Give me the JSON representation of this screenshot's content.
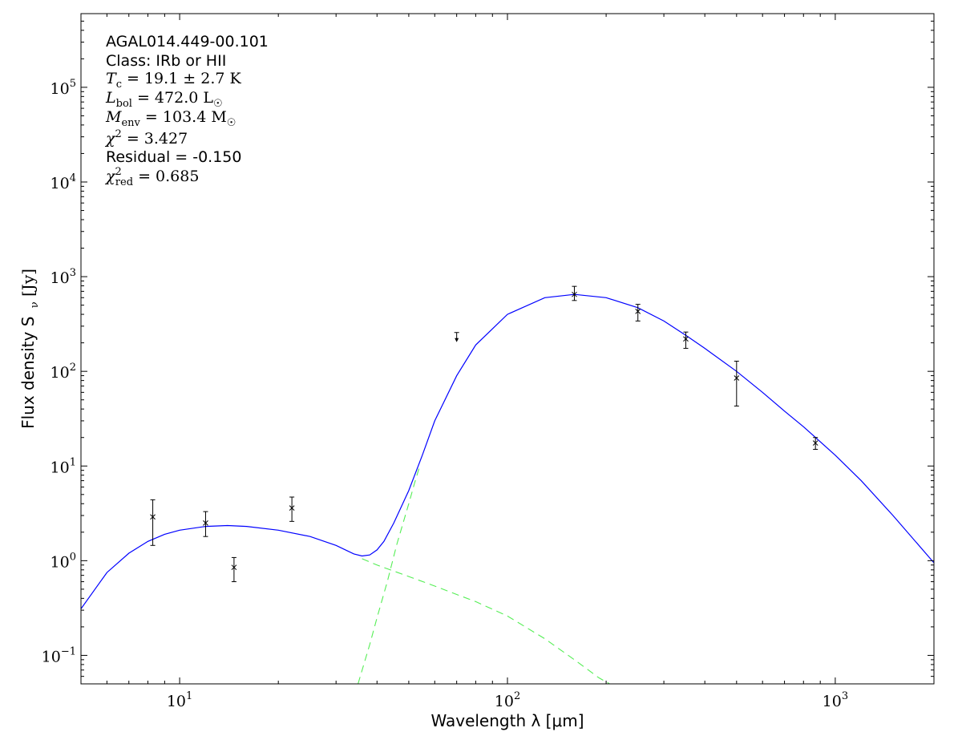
{
  "chart_data": {
    "type": "scatter",
    "source_name": "AGAL014.449-00.101",
    "classification": "Class: IRb or HII",
    "fit_results": {
      "tc": {
        "symbol": "T",
        "sub": "c",
        "rest": " = 19.1 ± 2.7 K"
      },
      "lbol": {
        "symbol": "L",
        "sub": "bol",
        "rest": " = 472.0 L",
        "unit_sub": "☉"
      },
      "menv": {
        "symbol": "M",
        "sub": "env",
        "rest": " = 103.4 M",
        "unit_sub": "☉"
      },
      "chi2": {
        "symbol": "χ",
        "sup": "2",
        "rest": " = 3.427"
      },
      "residual": "Residual = -0.150",
      "chi2red": {
        "symbol": "χ",
        "sup": "2",
        "sub": "red",
        "rest": " = 0.685"
      }
    },
    "xlabel": "Wavelength λ [μm]",
    "ylabel": "Flux density S",
    "ylabel_sub": "ν",
    "ylabel_units": " [Jy]",
    "x_scale": "log",
    "y_scale": "log",
    "xlim": [
      5,
      2000
    ],
    "ylim": [
      0.05,
      600000
    ],
    "x_ticks": [
      {
        "value": 10,
        "base": "10",
        "exp": "1"
      },
      {
        "value": 100,
        "base": "10",
        "exp": "2"
      },
      {
        "value": 1000,
        "base": "10",
        "exp": "3"
      }
    ],
    "y_ticks": [
      {
        "value": 0.1,
        "base": "10",
        "exp": "−1"
      },
      {
        "value": 1,
        "base": "10",
        "exp": "0"
      },
      {
        "value": 10,
        "base": "10",
        "exp": "1"
      },
      {
        "value": 100,
        "base": "10",
        "exp": "2"
      },
      {
        "value": 1000,
        "base": "10",
        "exp": "3"
      },
      {
        "value": 10000,
        "base": "10",
        "exp": "4"
      },
      {
        "value": 100000,
        "base": "10",
        "exp": "5"
      }
    ],
    "grid": false,
    "legend": "none",
    "observations": [
      {
        "wavelength": 8.28,
        "flux": 2.9,
        "err_low": 1.45,
        "err_high": 4.4
      },
      {
        "wavelength": 12.0,
        "flux": 2.5,
        "err_low": 1.8,
        "err_high": 3.3
      },
      {
        "wavelength": 14.65,
        "flux": 0.85,
        "err_low": 0.6,
        "err_high": 1.08
      },
      {
        "wavelength": 22.0,
        "flux": 3.6,
        "err_low": 2.6,
        "err_high": 4.7
      },
      {
        "wavelength": 160,
        "flux": 650,
        "err_low": 560,
        "err_high": 790
      },
      {
        "wavelength": 250,
        "flux": 430,
        "err_low": 340,
        "err_high": 510
      },
      {
        "wavelength": 350,
        "flux": 220,
        "err_low": 175,
        "err_high": 260
      },
      {
        "wavelength": 500,
        "flux": 85,
        "err_low": 43,
        "err_high": 128
      },
      {
        "wavelength": 870,
        "flux": 17.5,
        "err_low": 15,
        "err_high": 20
      }
    ],
    "upper_limits": [
      {
        "wavelength": 70,
        "flux": 220
      }
    ],
    "series": [
      {
        "style": "solid",
        "color": "#0000ff",
        "points": [
          [
            5,
            0.31
          ],
          [
            6,
            0.75
          ],
          [
            7,
            1.2
          ],
          [
            8,
            1.6
          ],
          [
            9,
            1.9
          ],
          [
            10,
            2.1
          ],
          [
            12,
            2.3
          ],
          [
            14,
            2.35
          ],
          [
            16,
            2.3
          ],
          [
            20,
            2.1
          ],
          [
            25,
            1.8
          ],
          [
            30,
            1.45
          ],
          [
            34,
            1.18
          ],
          [
            36,
            1.12
          ],
          [
            38,
            1.15
          ],
          [
            40,
            1.3
          ],
          [
            42,
            1.6
          ],
          [
            45,
            2.5
          ],
          [
            50,
            5.5
          ],
          [
            55,
            13
          ],
          [
            60,
            30
          ],
          [
            70,
            90
          ],
          [
            80,
            190
          ],
          [
            100,
            400
          ],
          [
            130,
            600
          ],
          [
            160,
            650
          ],
          [
            200,
            600
          ],
          [
            250,
            470
          ],
          [
            300,
            340
          ],
          [
            350,
            240
          ],
          [
            400,
            175
          ],
          [
            500,
            100
          ],
          [
            600,
            60
          ],
          [
            700,
            38
          ],
          [
            800,
            26
          ],
          [
            1000,
            13
          ],
          [
            1200,
            7
          ],
          [
            1500,
            3
          ],
          [
            2000,
            0.95
          ]
        ]
      },
      {
        "style": "dashed",
        "color": "#55ee55",
        "points": [
          [
            36,
            1.05
          ],
          [
            40,
            0.9
          ],
          [
            50,
            0.68
          ],
          [
            60,
            0.54
          ],
          [
            70,
            0.44
          ],
          [
            80,
            0.37
          ],
          [
            100,
            0.26
          ],
          [
            130,
            0.15
          ],
          [
            160,
            0.09
          ],
          [
            190,
            0.058
          ],
          [
            205,
            0.05
          ]
        ]
      },
      {
        "style": "dashed",
        "color": "#55ee55",
        "points": [
          [
            35,
            0.05
          ],
          [
            38,
            0.13
          ],
          [
            40,
            0.25
          ],
          [
            43,
            0.6
          ],
          [
            46,
            1.5
          ],
          [
            50,
            4
          ],
          [
            52,
            6.5
          ],
          [
            54,
            10
          ]
        ]
      }
    ]
  }
}
